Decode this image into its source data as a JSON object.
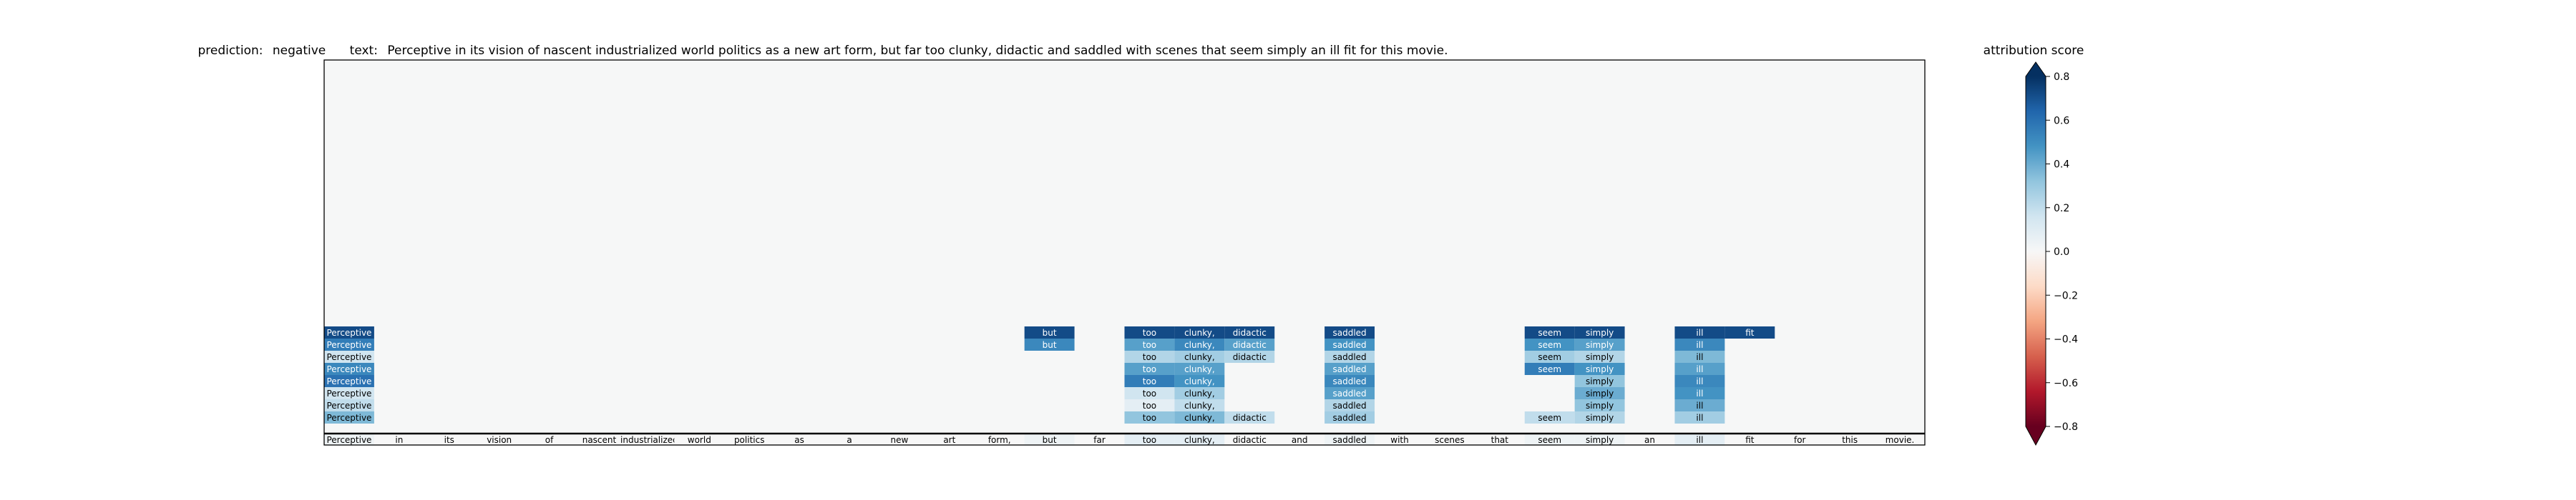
{
  "chart_data": {
    "type": "heatmap",
    "title": {
      "prediction_label": "prediction:",
      "prediction_value": "negative",
      "text_label": "text:",
      "text_value": "Perceptive in its vision of nascent industrialized world politics as a new art form, but far too clunky, didactic and saddled with scenes that seem simply an ill fit for this movie."
    },
    "tokens": [
      "Perceptive",
      "in",
      "its",
      "vision",
      "of",
      "nascent",
      "industrialized",
      "world",
      "politics",
      "as",
      "a",
      "new",
      "art",
      "form,",
      "but",
      "far",
      "too",
      "clunky,",
      "didactic",
      "and",
      "saddled",
      "with",
      "scenes",
      "that",
      "seem",
      "simply",
      "an",
      "ill",
      "fit",
      "for",
      "this",
      "movie."
    ],
    "base_row_scores": [
      0.05,
      0,
      0,
      0,
      0,
      0,
      0,
      0,
      0,
      0,
      0,
      0,
      0,
      0,
      0.05,
      0,
      0.1,
      0.1,
      0,
      0,
      0.05,
      0,
      0,
      0,
      0.05,
      0.05,
      0,
      0.1,
      0,
      0,
      0,
      0
    ],
    "rows": [
      {
        "scores": [
          0.45,
          0,
          0,
          0,
          0,
          0,
          0,
          0,
          0,
          0,
          0,
          0,
          0,
          0,
          0,
          0,
          0.4,
          0.45,
          0.25,
          0,
          0.35,
          0,
          0,
          0,
          0.25,
          0.3,
          0,
          0.35
        ]
      },
      {
        "scores": [
          0.25,
          0,
          0,
          0,
          0,
          0,
          0,
          0,
          0,
          0,
          0,
          0,
          0,
          0,
          0,
          0,
          0.1,
          0.25,
          0,
          0,
          0.3,
          0,
          0,
          0,
          0,
          0.4,
          0,
          0.5
        ]
      },
      {
        "scores": [
          0.2,
          0,
          0,
          0,
          0,
          0,
          0,
          0,
          0,
          0,
          0,
          0,
          0,
          0,
          0,
          0,
          0.2,
          0.35,
          0,
          0,
          0.55,
          0,
          0,
          0,
          0,
          0.5,
          0,
          0.6
        ]
      },
      {
        "scores": [
          0.75,
          0,
          0,
          0,
          0,
          0,
          0,
          0,
          0,
          0,
          0,
          0,
          0,
          0,
          0,
          0,
          0.7,
          0.6,
          0,
          0,
          0.65,
          0,
          0,
          0,
          0,
          0.4,
          0,
          0.65
        ]
      },
      {
        "scores": [
          0.65,
          0,
          0,
          0,
          0,
          0,
          0,
          0,
          0,
          0,
          0,
          0,
          0,
          0,
          0,
          0,
          0.55,
          0.55,
          0,
          0,
          0.55,
          0,
          0,
          0,
          0.7,
          0.6,
          0,
          0.55
        ]
      },
      {
        "scores": [
          0.2,
          0,
          0,
          0,
          0,
          0,
          0,
          0,
          0,
          0,
          0,
          0,
          0,
          0,
          0,
          0,
          0.3,
          0.35,
          0.3,
          0,
          0.3,
          0,
          0,
          0,
          0.35,
          0.3,
          0,
          0.45
        ]
      },
      {
        "scores": [
          0.7,
          0,
          0,
          0,
          0,
          0,
          0,
          0,
          0,
          0,
          0,
          0,
          0,
          0,
          0.65,
          0,
          0.55,
          0.65,
          0.55,
          0,
          0.6,
          0,
          0,
          0,
          0.6,
          0.55,
          0,
          0.65
        ]
      },
      {
        "scores": [
          0.9,
          0,
          0,
          0,
          0,
          0,
          0,
          0,
          0,
          0,
          0,
          0,
          0,
          0,
          0.9,
          0,
          0.9,
          0.9,
          0.9,
          0,
          0.9,
          0,
          0,
          0,
          0.9,
          0.9,
          0,
          0.9,
          0.9
        ]
      }
    ],
    "colorbar": {
      "title": "attribution score",
      "ticks": [
        "0.8",
        "0.6",
        "0.4",
        "0.2",
        "0.0",
        "−0.2",
        "−0.4",
        "−0.6",
        "−0.8"
      ],
      "range": [
        -0.8,
        0.8
      ],
      "colormap": "RdBu"
    },
    "background_color": "#f6f7f7"
  }
}
